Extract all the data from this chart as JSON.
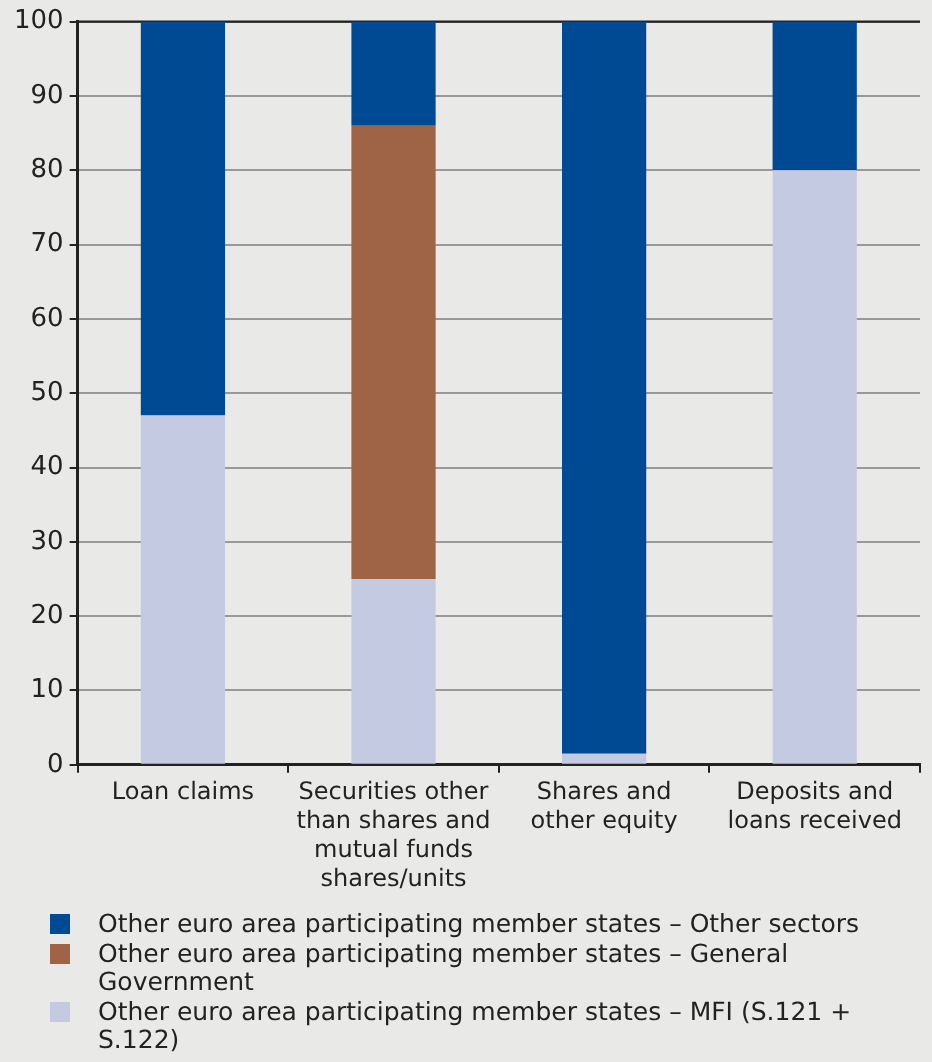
{
  "chart_data": {
    "type": "bar",
    "stacked": true,
    "categories": [
      "Loan claims",
      "Securities other than shares and mutual funds shares/units",
      "Shares and other equity",
      "Deposits and loans received"
    ],
    "series": [
      {
        "name": "Other euro area participating member states – MFI (S.121 + S.122)",
        "color": "#c5cae3",
        "values": [
          47,
          25,
          1.5,
          80
        ]
      },
      {
        "name": "Other euro area participating member states – General Government",
        "color": "#9e6445",
        "values": [
          null,
          61,
          null,
          null
        ]
      },
      {
        "name": "Other euro area participating member states – Other sectors",
        "color": "#004a94",
        "values": [
          53,
          14,
          98.5,
          20
        ]
      }
    ],
    "ylim": [
      0,
      100
    ],
    "yticks": [
      0,
      10,
      20,
      30,
      40,
      50,
      60,
      70,
      80,
      90,
      100
    ],
    "grid": "y",
    "legend": "bottom"
  }
}
